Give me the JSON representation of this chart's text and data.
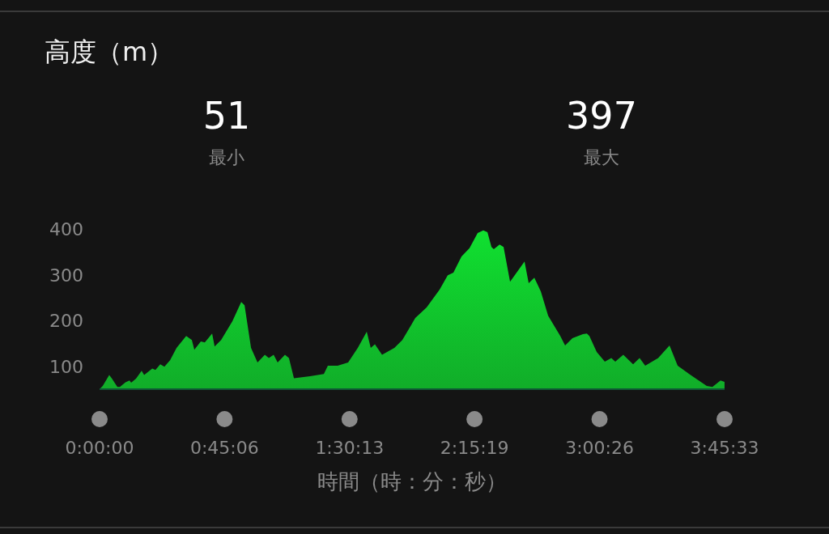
{
  "chart_data": {
    "type": "area",
    "title": "高度（m）",
    "xlabel": "時間（時：分：秒）",
    "annotations": [
      "51",
      "最小",
      "397",
      "最大"
    ],
    "xlim": [
      0,
      3.75917
    ],
    "ylim": [
      51,
      400
    ],
    "xticks": [
      {
        "value": 0,
        "label": "0:00:00"
      },
      {
        "value": 0.75167,
        "label": "0:45:06"
      },
      {
        "value": 1.50361,
        "label": "1:30:13"
      },
      {
        "value": 2.25528,
        "label": "2:15:19"
      },
      {
        "value": 3.00722,
        "label": "3:00:26"
      },
      {
        "value": 3.75917,
        "label": "3:45:33"
      }
    ],
    "yticks": [
      100,
      200,
      300,
      400
    ],
    "grid": false,
    "series": [
      {
        "color": "#10e030",
        "x": [
          0,
          0.019,
          0.058,
          0.073,
          0.107,
          0.122,
          0.156,
          0.18,
          0.19,
          0.219,
          0.253,
          0.268,
          0.317,
          0.336,
          0.365,
          0.39,
          0.424,
          0.463,
          0.521,
          0.555,
          0.57,
          0.609,
          0.633,
          0.677,
          0.692,
          0.731,
          0.799,
          0.852,
          0.872,
          0.911,
          0.95,
          0.994,
          1.018,
          1.047,
          1.071,
          1.115,
          1.139,
          1.169,
          1.266,
          1.349,
          1.373,
          1.432,
          1.495,
          1.553,
          1.607,
          1.631,
          1.656,
          1.699,
          1.773,
          1.821,
          1.899,
          1.967,
          2.045,
          2.094,
          2.128,
          2.177,
          2.225,
          2.274,
          2.308,
          2.333,
          2.357,
          2.371,
          2.406,
          2.43,
          2.469,
          2.556,
          2.581,
          2.615,
          2.654,
          2.698,
          2.771,
          2.8,
          2.844,
          2.907,
          2.931,
          2.946,
          2.99,
          3.039,
          3.078,
          3.102,
          3.15,
          3.209,
          3.248,
          3.282,
          3.36,
          3.428,
          3.477,
          3.555,
          3.652,
          3.686,
          3.735,
          3.759
        ],
        "values": [
          51,
          58,
          82,
          75,
          56,
          56,
          66,
          70,
          65,
          74,
          91,
          82,
          96,
          93,
          105,
          100,
          114,
          141,
          167,
          158,
          137,
          155,
          153,
          172,
          144,
          158,
          199,
          241,
          234,
          141,
          109,
          126,
          119,
          126,
          109,
          126,
          119,
          75,
          79,
          84,
          102,
          102,
          109,
          141,
          176,
          141,
          149,
          126,
          141,
          158,
          206,
          229,
          268,
          299,
          305,
          340,
          358,
          391,
          397,
          393,
          361,
          356,
          366,
          361,
          285,
          329,
          282,
          294,
          264,
          211,
          167,
          146,
          162,
          171,
          172,
          167,
          132,
          111,
          119,
          111,
          126,
          105,
          119,
          102,
          119,
          146,
          102,
          82,
          58,
          56,
          70,
          67
        ]
      }
    ]
  }
}
